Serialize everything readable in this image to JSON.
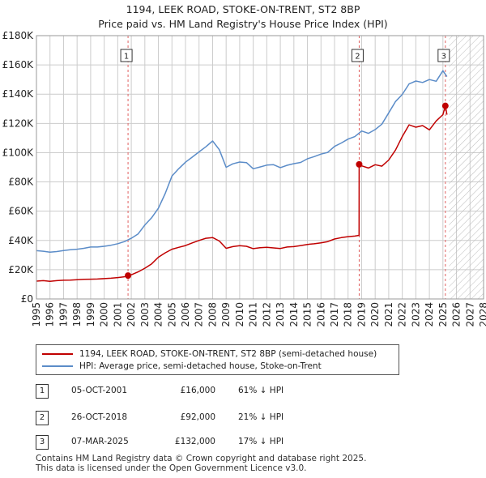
{
  "chart_data": {
    "type": "line",
    "title": "1194, LEEK ROAD, STOKE-ON-TRENT, ST2 8BP",
    "subtitle": "Price paid vs. HM Land Registry's House Price Index (HPI)",
    "xlabel": "",
    "ylabel": "",
    "xlim": [
      1995,
      2028
    ],
    "ylim": [
      0,
      180000
    ],
    "x_ticks": [
      "1995",
      "1996",
      "1997",
      "1998",
      "1999",
      "2000",
      "2001",
      "2002",
      "2003",
      "2004",
      "2005",
      "2006",
      "2007",
      "2008",
      "2009",
      "2010",
      "2011",
      "2012",
      "2013",
      "2014",
      "2015",
      "2016",
      "2017",
      "2018",
      "2019",
      "2020",
      "2021",
      "2022",
      "2023",
      "2024",
      "2025",
      "2026",
      "2027",
      "2028"
    ],
    "y_ticks": [
      {
        "value": 0,
        "label": "£0"
      },
      {
        "value": 20000,
        "label": "£20K"
      },
      {
        "value": 40000,
        "label": "£40K"
      },
      {
        "value": 60000,
        "label": "£60K"
      },
      {
        "value": 80000,
        "label": "£80K"
      },
      {
        "value": 100000,
        "label": "£100K"
      },
      {
        "value": 120000,
        "label": "£120K"
      },
      {
        "value": 140000,
        "label": "£140K"
      },
      {
        "value": 160000,
        "label": "£160K"
      },
      {
        "value": 180000,
        "label": "£180K"
      }
    ],
    "grid": true,
    "hatched_future_from": 2025.45,
    "series": [
      {
        "name": "1194, LEEK ROAD, STOKE-ON-TRENT, ST2 8BP (semi-detached house)",
        "color": "#c00000",
        "x": [
          1995.0,
          1995.5,
          1996.0,
          1996.5,
          1997.0,
          1997.5,
          1998.0,
          1998.5,
          1999.0,
          1999.5,
          2000.0,
          2000.5,
          2001.0,
          2001.5,
          2001.76,
          2002.0,
          2002.5,
          2003.0,
          2003.5,
          2004.0,
          2004.5,
          2005.0,
          2005.5,
          2006.0,
          2006.5,
          2007.0,
          2007.5,
          2008.0,
          2008.5,
          2009.0,
          2009.5,
          2010.0,
          2010.5,
          2011.0,
          2011.5,
          2012.0,
          2012.5,
          2013.0,
          2013.5,
          2014.0,
          2014.5,
          2015.0,
          2015.5,
          2016.0,
          2016.5,
          2017.0,
          2017.5,
          2018.0,
          2018.5,
          2018.81,
          2018.82,
          2019.0,
          2019.5,
          2020.0,
          2020.5,
          2021.0,
          2021.5,
          2022.0,
          2022.5,
          2023.0,
          2023.5,
          2024.0,
          2024.5,
          2025.0,
          2025.18,
          2025.3
        ],
        "y": [
          12200,
          12500,
          12100,
          12500,
          12800,
          12900,
          13100,
          13400,
          13500,
          13600,
          13900,
          14200,
          14600,
          15200,
          16000,
          16500,
          18500,
          21000,
          24000,
          28500,
          31500,
          34000,
          35300,
          36500,
          38300,
          40000,
          41500,
          42000,
          39600,
          34600,
          35800,
          36400,
          36000,
          34400,
          35000,
          35300,
          34900,
          34500,
          35500,
          35800,
          36500,
          37300,
          37700,
          38400,
          39200,
          41000,
          41900,
          42600,
          43000,
          43500,
          92000,
          91000,
          89500,
          91800,
          90800,
          95000,
          101800,
          111000,
          119000,
          117400,
          118500,
          115600,
          121700,
          126000,
          132000,
          126000
        ]
      },
      {
        "name": "HPI: Average price, semi-detached house, Stoke-on-Trent",
        "color": "#5b8cc8",
        "x": [
          1995.0,
          1995.5,
          1996.0,
          1996.5,
          1997.0,
          1997.5,
          1998.0,
          1998.5,
          1999.0,
          1999.5,
          2000.0,
          2000.5,
          2001.0,
          2001.5,
          2002.0,
          2002.5,
          2003.0,
          2003.5,
          2004.0,
          2004.5,
          2005.0,
          2005.5,
          2006.0,
          2006.5,
          2007.0,
          2007.5,
          2008.0,
          2008.5,
          2009.0,
          2009.5,
          2010.0,
          2010.5,
          2011.0,
          2011.5,
          2012.0,
          2012.5,
          2013.0,
          2013.5,
          2014.0,
          2014.5,
          2015.0,
          2015.5,
          2016.0,
          2016.5,
          2017.0,
          2017.5,
          2018.0,
          2018.5,
          2019.0,
          2019.5,
          2020.0,
          2020.5,
          2021.0,
          2021.5,
          2022.0,
          2022.5,
          2023.0,
          2023.5,
          2024.0,
          2024.5,
          2025.0,
          2025.3
        ],
        "y": [
          33000,
          32600,
          32000,
          32400,
          33100,
          33600,
          34000,
          34600,
          35500,
          35500,
          36000,
          36700,
          37800,
          39200,
          41500,
          44500,
          50500,
          55500,
          62000,
          72000,
          84000,
          89000,
          93500,
          97000,
          100500,
          104000,
          108000,
          102000,
          90000,
          92400,
          93600,
          93200,
          89000,
          90200,
          91500,
          91800,
          89800,
          91400,
          92500,
          93300,
          95800,
          97300,
          99000,
          100200,
          104300,
          106600,
          109300,
          111000,
          114800,
          113200,
          115800,
          119500,
          127200,
          135000,
          139800,
          147000,
          149000,
          148000,
          150000,
          148800,
          156000,
          152000
        ]
      }
    ],
    "sale_markers": [
      {
        "label": "1",
        "x": 2001.76,
        "y": 16000
      },
      {
        "label": "2",
        "x": 2018.82,
        "y": 92000
      },
      {
        "label": "3",
        "x": 2025.18,
        "y": 132000
      }
    ]
  },
  "legend": {
    "property": "1194, LEEK ROAD, STOKE-ON-TRENT, ST2 8BP (semi-detached house)",
    "hpi": "HPI: Average price, semi-detached house, Stoke-on-Trent"
  },
  "sales": [
    {
      "label": "1",
      "date": "05-OCT-2001",
      "price": "£16,000",
      "hpi": "61% ↓ HPI"
    },
    {
      "label": "2",
      "date": "26-OCT-2018",
      "price": "£92,000",
      "hpi": "21% ↓ HPI"
    },
    {
      "label": "3",
      "date": "07-MAR-2025",
      "price": "£132,000",
      "hpi": "17% ↓ HPI"
    }
  ],
  "footer": {
    "line1": "Contains HM Land Registry data © Crown copyright and database right 2025.",
    "line2": "This data is licensed under the Open Government Licence v3.0."
  }
}
